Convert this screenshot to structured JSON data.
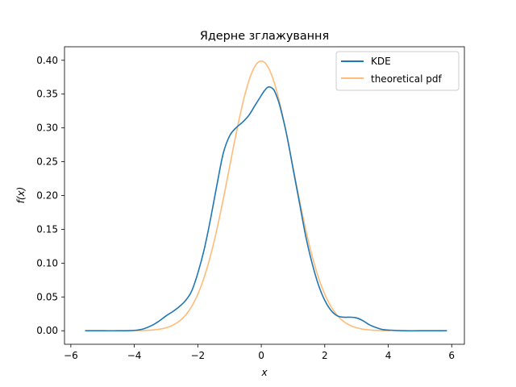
{
  "chart_data": {
    "type": "line",
    "title": "Ядерне зглажування",
    "xlabel": "x",
    "ylabel": "f(x)",
    "xlim": [
      -6.2,
      6.4
    ],
    "ylim": [
      -0.02,
      0.42
    ],
    "xticks": [
      -6,
      -4,
      -2,
      0,
      2,
      4,
      6
    ],
    "xtick_labels": [
      "−6",
      "−4",
      "−2",
      "0",
      "2",
      "4",
      "6"
    ],
    "yticks": [
      0.0,
      0.05,
      0.1,
      0.15,
      0.2,
      0.25,
      0.3,
      0.35,
      0.4
    ],
    "ytick_labels": [
      "0.00",
      "0.05",
      "0.10",
      "0.15",
      "0.20",
      "0.25",
      "0.30",
      "0.35",
      "0.40"
    ],
    "grid": false,
    "legend_position": "top-right",
    "series": [
      {
        "name": "KDE",
        "color": "#1f77b4",
        "x": [
          -5.55,
          -5.0,
          -4.5,
          -4.0,
          -3.7,
          -3.4,
          -3.2,
          -3.0,
          -2.8,
          -2.6,
          -2.4,
          -2.2,
          -2.0,
          -1.8,
          -1.6,
          -1.4,
          -1.2,
          -1.0,
          -0.8,
          -0.6,
          -0.4,
          -0.2,
          0.0,
          0.1,
          0.2,
          0.3,
          0.4,
          0.5,
          0.6,
          0.8,
          1.0,
          1.2,
          1.4,
          1.6,
          1.8,
          2.0,
          2.2,
          2.4,
          2.6,
          2.8,
          3.0,
          3.2,
          3.4,
          3.6,
          3.8,
          4.0,
          4.5,
          5.0,
          5.85
        ],
        "y": [
          0.0,
          0.0,
          0.0,
          0.0005,
          0.003,
          0.009,
          0.015,
          0.022,
          0.028,
          0.035,
          0.044,
          0.058,
          0.085,
          0.12,
          0.165,
          0.215,
          0.262,
          0.288,
          0.3,
          0.308,
          0.318,
          0.333,
          0.348,
          0.355,
          0.36,
          0.36,
          0.356,
          0.345,
          0.33,
          0.29,
          0.24,
          0.19,
          0.14,
          0.1,
          0.068,
          0.045,
          0.03,
          0.022,
          0.02,
          0.02,
          0.019,
          0.015,
          0.009,
          0.005,
          0.002,
          0.001,
          0.0,
          0.0,
          0.0
        ]
      },
      {
        "name": "theoretical pdf",
        "color": "#ffbb78",
        "distribution": "standard normal",
        "x_range": [
          -3.95,
          4.05
        ],
        "peak": 0.399
      }
    ]
  }
}
